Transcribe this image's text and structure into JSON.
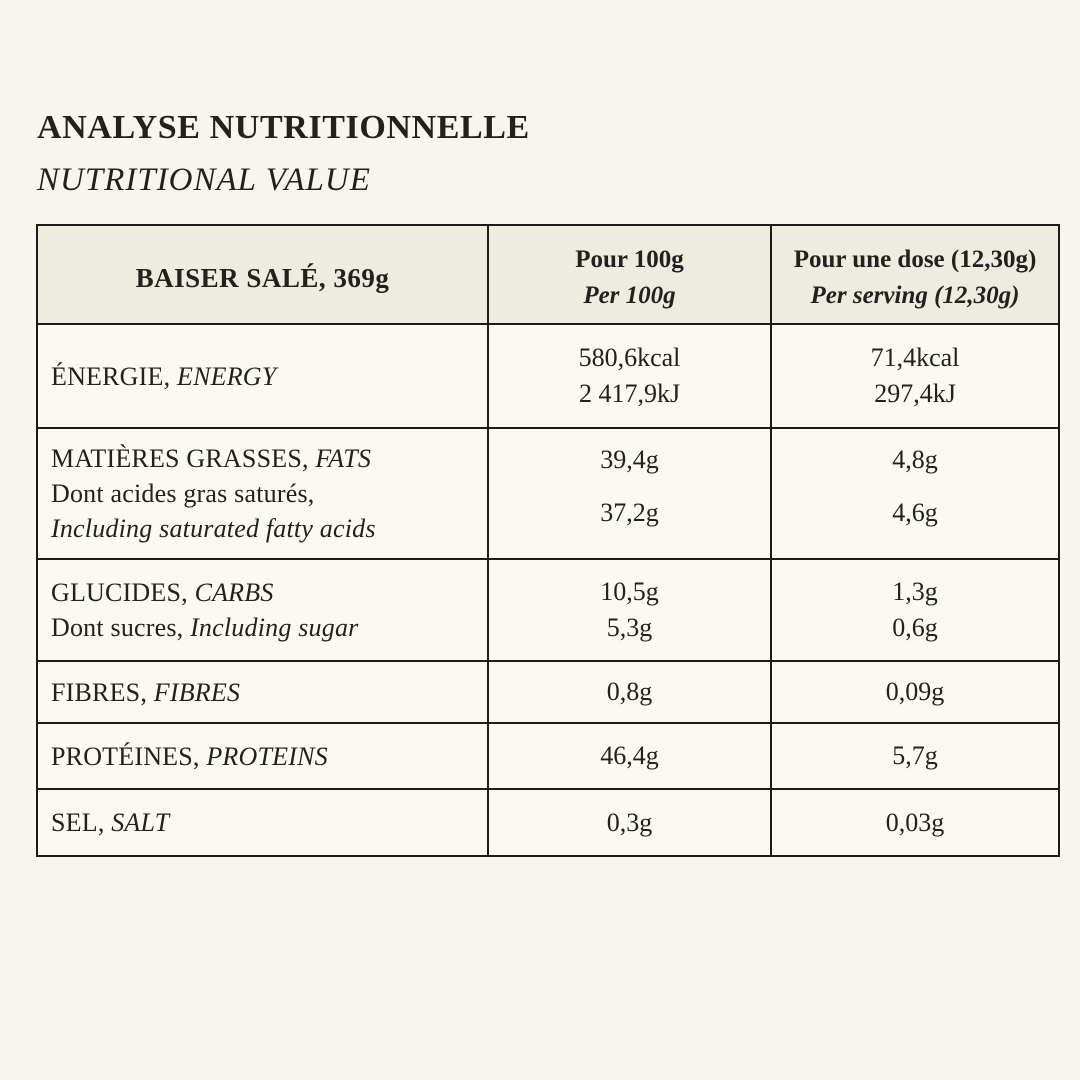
{
  "colors": {
    "page_bg": "#f7f5ee",
    "cell_bg": "#fbf9f2",
    "header_bg": "#eeebe0",
    "border": "#1c1b18",
    "text": "#22211e"
  },
  "header": {
    "title_fr": "ANALYSE NUTRITIONNELLE",
    "title_en": "NUTRITIONAL VALUE"
  },
  "table": {
    "product": "BAISER SALÉ, 369g",
    "col_per100": {
      "fr": "Pour 100g",
      "en": "Per 100g"
    },
    "col_serving": {
      "fr": "Pour une dose (12,30g)",
      "en": "Per serving (12,30g)"
    },
    "rows": [
      {
        "name": "energy",
        "label_lines": [
          [
            "ÉNERGIE, ",
            "ENERGY"
          ]
        ],
        "per100": [
          "580,6kcal",
          "2 417,9kJ"
        ],
        "serving": [
          "71,4kcal",
          "297,4kJ"
        ]
      },
      {
        "name": "fats",
        "label_lines": [
          [
            "MATIÈRES GRASSES, ",
            "FATS"
          ],
          [
            "Dont acides gras saturés,"
          ],
          [
            "Including saturated fatty acids"
          ]
        ],
        "per100": [
          "39,4g",
          "37,2g"
        ],
        "serving": [
          "4,8g",
          "4,6g"
        ]
      },
      {
        "name": "carbs",
        "label_lines": [
          [
            "GLUCIDES, ",
            "CARBS"
          ],
          [
            "Dont sucres, ",
            "Including sugar"
          ]
        ],
        "per100": [
          "10,5g",
          "5,3g"
        ],
        "serving": [
          "1,3g",
          "0,6g"
        ]
      },
      {
        "name": "fibres",
        "label_lines": [
          [
            "FIBRES, ",
            "FIBRES"
          ]
        ],
        "per100": [
          "0,8g"
        ],
        "serving": [
          "0,09g"
        ]
      },
      {
        "name": "proteins",
        "label_lines": [
          [
            "PROTÉINES, ",
            "PROTEINS"
          ]
        ],
        "per100": [
          "46,4g"
        ],
        "serving": [
          "5,7g"
        ]
      },
      {
        "name": "salt",
        "label_lines": [
          [
            "SEL, ",
            "SALT"
          ]
        ],
        "per100": [
          "0,3g"
        ],
        "serving": [
          "0,03g"
        ]
      }
    ]
  }
}
